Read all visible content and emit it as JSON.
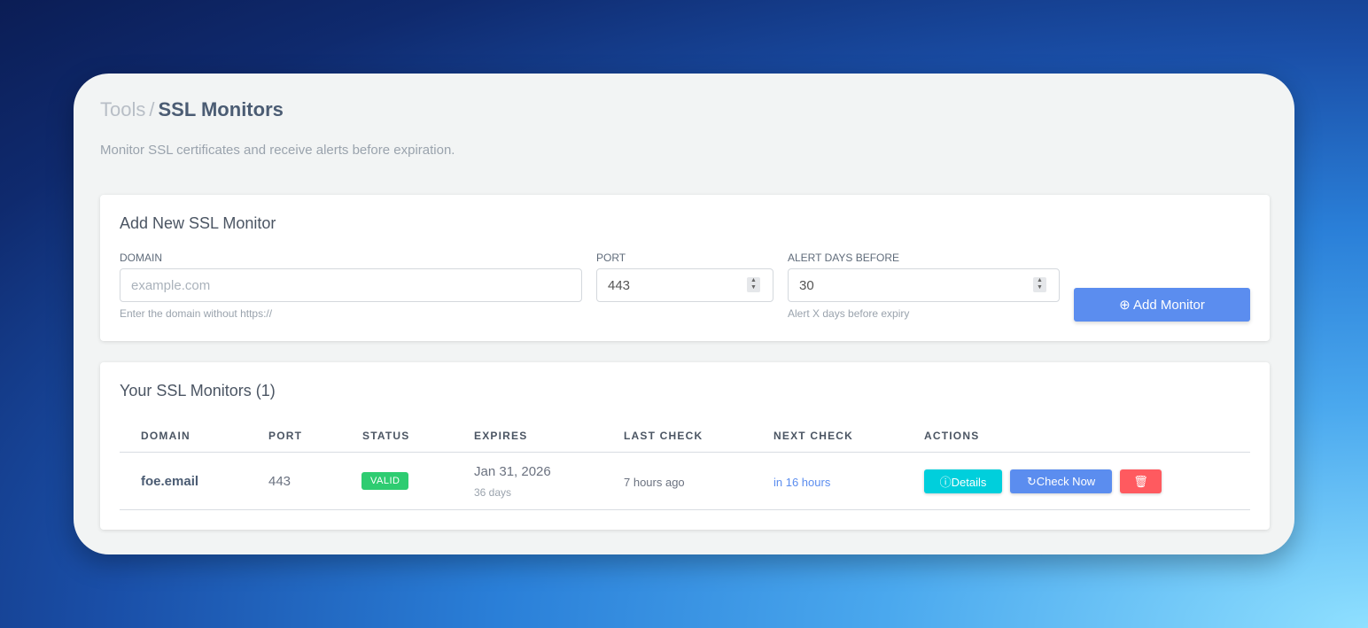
{
  "breadcrumb": {
    "parent": "Tools",
    "separator": "/",
    "current": "SSL Monitors"
  },
  "subtitle": "Monitor SSL certificates and receive alerts before expiration.",
  "add_form": {
    "title": "Add New SSL Monitor",
    "domain": {
      "label": "DOMAIN",
      "placeholder": "example.com",
      "value": "",
      "help": "Enter the domain without https://"
    },
    "port": {
      "label": "PORT",
      "value": "443"
    },
    "alert_days": {
      "label": "ALERT DAYS BEFORE",
      "value": "30",
      "help": "Alert X days before expiry"
    },
    "submit_label": "Add Monitor",
    "submit_icon": "plus-circle-icon"
  },
  "monitors": {
    "title": "Your SSL Monitors (1)",
    "columns": [
      "DOMAIN",
      "PORT",
      "STATUS",
      "EXPIRES",
      "LAST CHECK",
      "NEXT CHECK",
      "ACTIONS"
    ],
    "rows": [
      {
        "domain": "foe.email",
        "port": "443",
        "status": "VALID",
        "expires": "Jan 31, 2026",
        "expires_in": "36 days",
        "last_check": "7 hours ago",
        "next_check": "in 16 hours"
      }
    ],
    "actions": {
      "details": "Details",
      "check_now": "Check Now"
    }
  },
  "colors": {
    "accent": "#5b8def",
    "valid": "#2ecc71",
    "details": "#00cfdc",
    "delete": "#ff5a5f",
    "next_check": "#5b8def"
  }
}
